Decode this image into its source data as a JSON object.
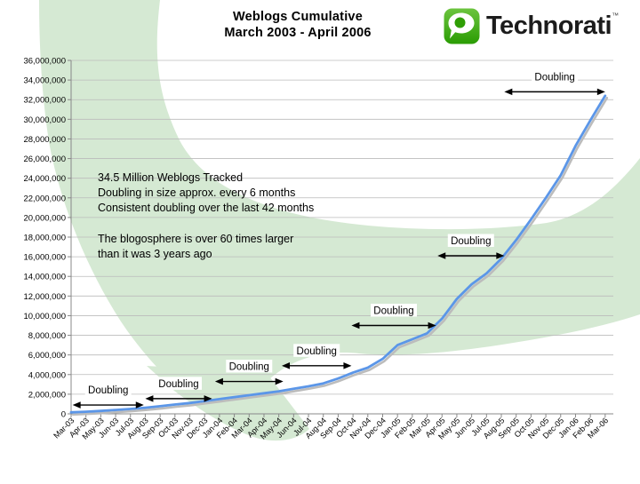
{
  "header": {
    "title_line1": "Weblogs Cumulative",
    "title_line2": "March 2003 - April 2006",
    "logo_text": "Technorati",
    "logo_tm": "™"
  },
  "annotations": {
    "block1_lines": [
      "34.5 Million Weblogs Tracked",
      "Doubling in size approx. every 6 months",
      "Consistent doubling over the last 42 months"
    ],
    "block2_lines": [
      "The blogosphere is over 60 times larger",
      "than it was 3 years ago"
    ]
  },
  "chart_data": {
    "type": "line",
    "title": "Weblogs Cumulative March 2003 - April 2006",
    "xlabel": "",
    "ylabel": "",
    "ylim": [
      0,
      36000000
    ],
    "ytick_step": 2000000,
    "grid": true,
    "legend": "none",
    "line_color": "#5b96e8",
    "line_shadow_color": "#bcbcbc",
    "grid_color": "#bbbbbb",
    "axis_color": "#888888",
    "watermark_color": "#d5e9d3",
    "ytick_labels": [
      "0",
      "2,000,000",
      "4,000,000",
      "6,000,000",
      "8,000,000",
      "10,000,000",
      "12,000,000",
      "14,000,000",
      "16,000,000",
      "18,000,000",
      "20,000,000",
      "22,000,000",
      "24,000,000",
      "26,000,000",
      "28,000,000",
      "30,000,000",
      "32,000,000",
      "34,000,000",
      "36,000,000"
    ],
    "x": [
      "Mar-03",
      "Apr-03",
      "May-03",
      "Jun-03",
      "Jul-03",
      "Aug-03",
      "Sep-03",
      "Oct-03",
      "Nov-03",
      "Dec-03",
      "Jan-04",
      "Feb-04",
      "Mar-04",
      "Apr-04",
      "May-04",
      "Jun-04",
      "Jul-04",
      "Aug-04",
      "Sep-04",
      "Oct-04",
      "Nov-04",
      "Dec-04",
      "Jan-05",
      "Feb-05",
      "Mar-05",
      "Apr-05",
      "May-05",
      "Jun-05",
      "Jul-05",
      "Aug-05",
      "Sep-05",
      "Oct-05",
      "Nov-05",
      "Dec-05",
      "Jan-06",
      "Feb-06",
      "Mar-06"
    ],
    "series": [
      {
        "name": "Weblogs Cumulative",
        "values": [
          150000,
          220000,
          300000,
          400000,
          500000,
          620000,
          780000,
          950000,
          1100000,
          1300000,
          1500000,
          1700000,
          1900000,
          2100000,
          2300000,
          2550000,
          2800000,
          3100000,
          3600000,
          4200000,
          4700000,
          5600000,
          7000000,
          7600000,
          8200000,
          9700000,
          11700000,
          13200000,
          14300000,
          15800000,
          17700000,
          19800000,
          22000000,
          24300000,
          27300000,
          29900000,
          32400000
        ]
      }
    ],
    "doubling_arrows": [
      {
        "label": "Doubling",
        "x1_month": 0.1,
        "x2_month": 4.9,
        "value": 900000
      },
      {
        "label": "Doubling",
        "x1_month": 5.0,
        "x2_month": 9.5,
        "value": 1550000
      },
      {
        "label": "Doubling",
        "x1_month": 9.7,
        "x2_month": 14.3,
        "value": 3300000
      },
      {
        "label": "Doubling",
        "x1_month": 14.2,
        "x2_month": 18.9,
        "value": 4900000
      },
      {
        "label": "Doubling",
        "x1_month": 18.9,
        "x2_month": 24.6,
        "value": 9000000
      },
      {
        "label": "Doubling",
        "x1_month": 24.7,
        "x2_month": 29.2,
        "value": 16100000
      },
      {
        "label": "Doubling",
        "x1_month": 29.2,
        "x2_month": 36.0,
        "value": 32800000
      }
    ]
  }
}
